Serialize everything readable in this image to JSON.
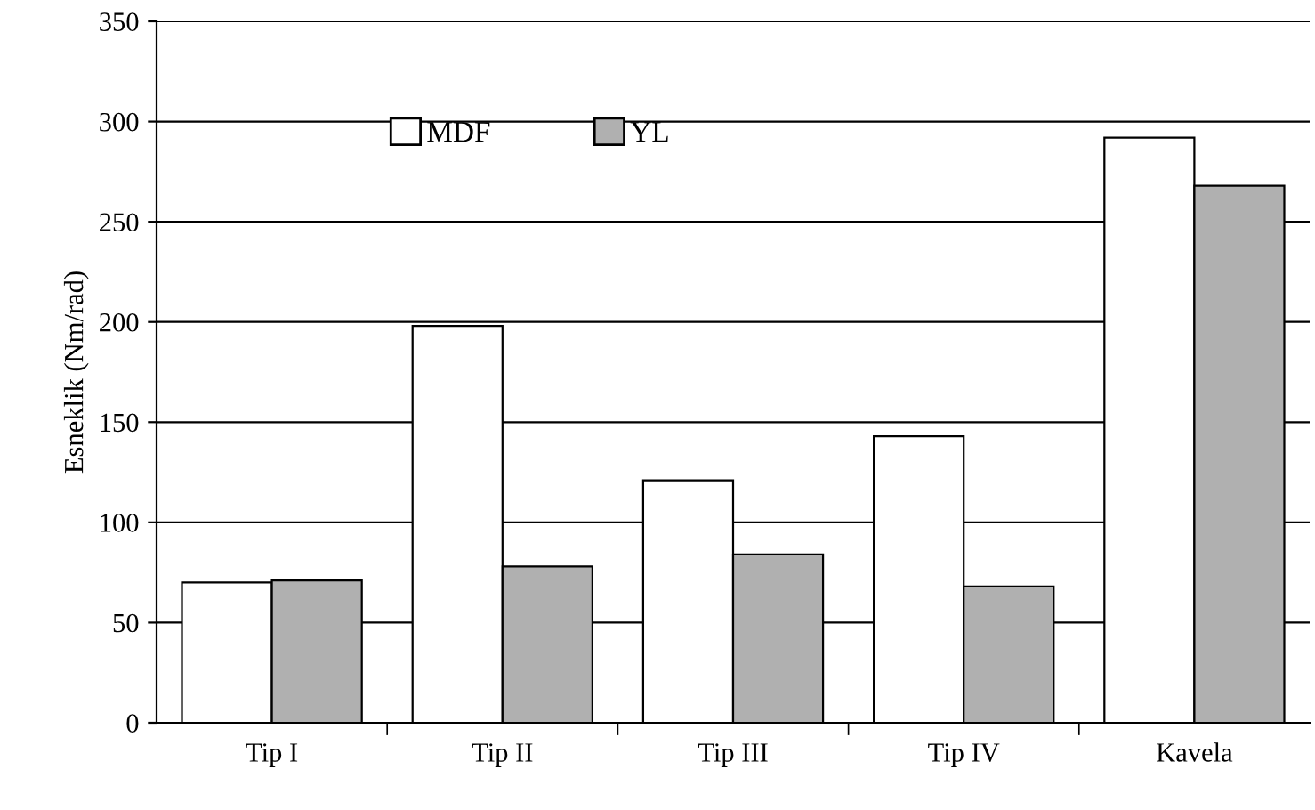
{
  "chart_data": {
    "type": "bar",
    "ylabel": "Esneklik (Nm/rad)",
    "categories": [
      "Tip I",
      "Tip II",
      "Tip III",
      "Tip IV",
      "Kavela"
    ],
    "series": [
      {
        "name": "MDF",
        "color": "#ffffff",
        "values": [
          70,
          198,
          121,
          143,
          292
        ]
      },
      {
        "name": "YL",
        "color": "#b0b0b0",
        "values": [
          71,
          78,
          84,
          68,
          268
        ]
      }
    ],
    "ylim": [
      0,
      350
    ],
    "yticks": [
      0,
      50,
      100,
      150,
      200,
      250,
      300,
      350
    ],
    "grid": "y",
    "legend": "top left"
  }
}
